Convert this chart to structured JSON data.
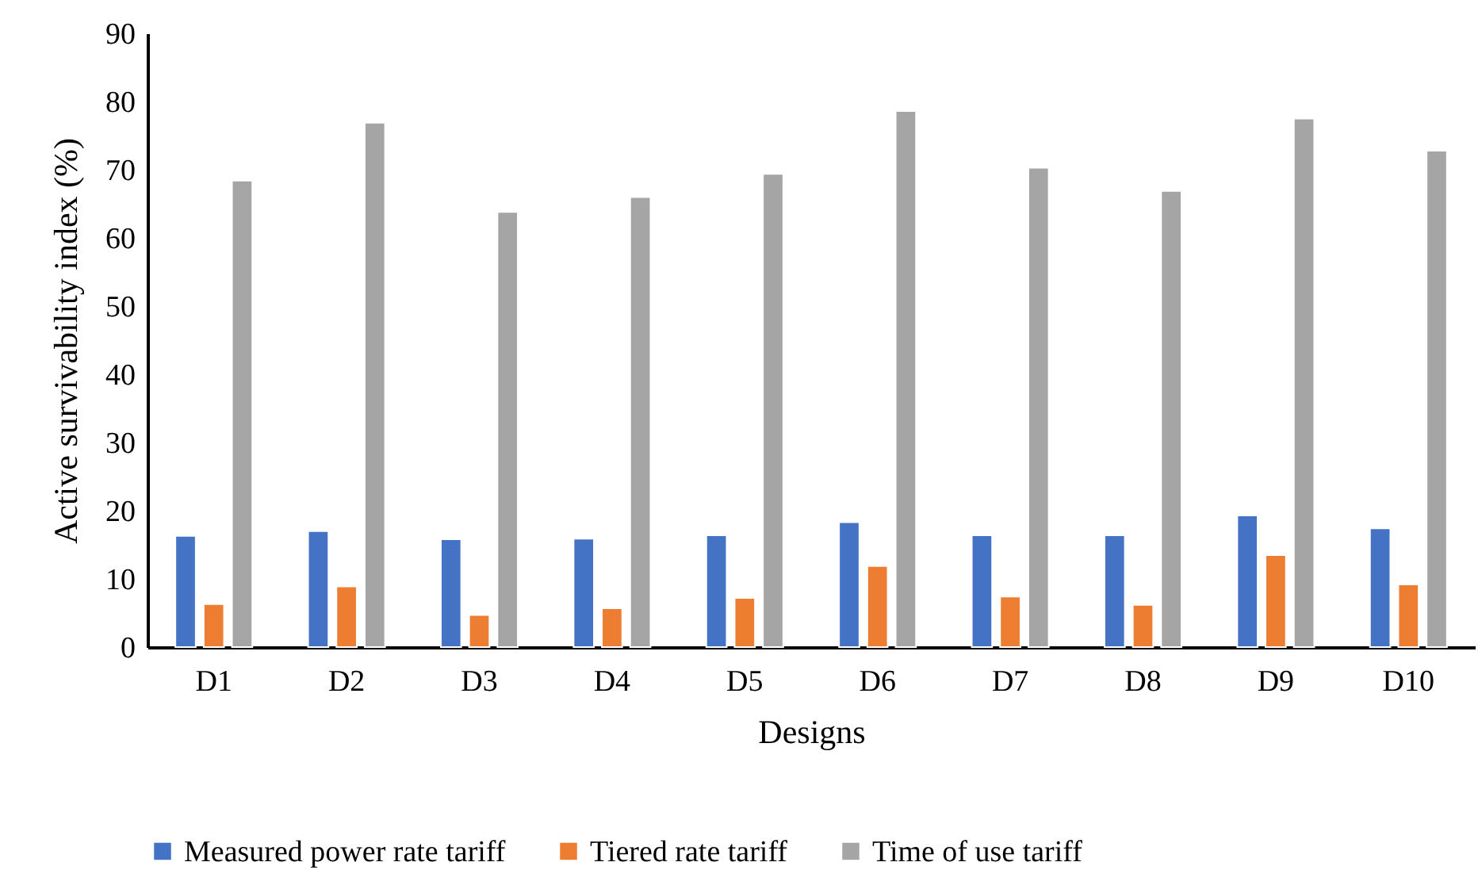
{
  "chart_data": {
    "type": "bar",
    "xlabel": "Designs",
    "ylabel": "Active survivability index (%)",
    "categories": [
      "D1",
      "D2",
      "D3",
      "D4",
      "D5",
      "D6",
      "D7",
      "D8",
      "D9",
      "D10"
    ],
    "series": [
      {
        "name": "Measured power rate tariff",
        "color": "#4472c4",
        "values": [
          16.3,
          17.0,
          15.8,
          15.9,
          16.4,
          18.3,
          16.4,
          16.4,
          19.3,
          17.4
        ]
      },
      {
        "name": "Tiered rate tariff",
        "color": "#ed7d31",
        "values": [
          6.3,
          8.9,
          4.7,
          5.7,
          7.2,
          11.9,
          7.4,
          6.2,
          13.5,
          9.2
        ]
      },
      {
        "name": "Time of use tariff",
        "color": "#a5a5a5",
        "values": [
          68.4,
          76.9,
          63.8,
          66.0,
          69.4,
          78.6,
          70.3,
          66.9,
          77.5,
          72.8
        ]
      }
    ],
    "ylim": [
      0,
      90
    ],
    "yticks": [
      0,
      10,
      20,
      30,
      40,
      50,
      60,
      70,
      80,
      90
    ],
    "grid": false,
    "legend": "bottom"
  }
}
